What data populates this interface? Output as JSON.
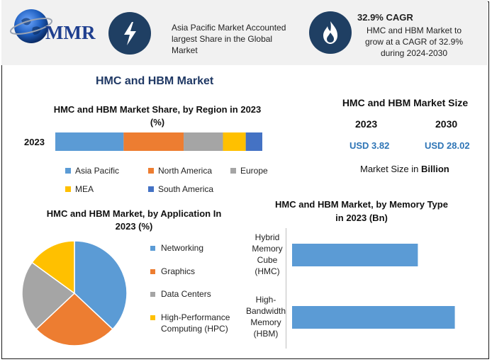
{
  "header": {
    "logo_text": "MMR",
    "info1_text": "Asia Pacific Market Accounted largest Share in the Global Market",
    "cagr_title": "32.9% CAGR",
    "cagr_text": "HMC and HBM Market to grow at a CAGR of 32.9% during 2024-2030",
    "icon1": "lightning-icon",
    "icon2": "flame-icon"
  },
  "main_title": "HMC and HBM Market",
  "colors": {
    "asia_pacific": "#5b9bd5",
    "north_america": "#ed7d31",
    "europe": "#a5a5a5",
    "mea": "#ffc000",
    "south_america": "#4472c4",
    "title_blue": "#1f3864",
    "value_blue": "#2e75b6"
  },
  "size_panel": {
    "title": "HMC and HBM Market Size",
    "year1": "2023",
    "year2": "2030",
    "value1": "USD 3.82",
    "value2": "USD 28.02",
    "unit_prefix": "Market Size in ",
    "unit_bold": "Billion"
  },
  "chart_data": [
    {
      "type": "bar",
      "orientation": "horizontal-stacked",
      "title": "HMC and HBM Market Share, by Region in 2023 (%)",
      "categories": [
        "2023"
      ],
      "series": [
        {
          "name": "Asia Pacific",
          "values": [
            33
          ]
        },
        {
          "name": "North America",
          "values": [
            29
          ]
        },
        {
          "name": "Europe",
          "values": [
            19
          ]
        },
        {
          "name": "MEA",
          "values": [
            11
          ]
        },
        {
          "name": "South America",
          "values": [
            8
          ]
        }
      ],
      "legend": "bottom"
    },
    {
      "type": "pie",
      "title": "HMC and HBM Market, by Application In 2023 (%)",
      "labels": [
        "Networking",
        "Graphics",
        "Data Centers",
        "High-Performance Computing (HPC)"
      ],
      "values": [
        37,
        26,
        22,
        15
      ],
      "legend": "right"
    },
    {
      "type": "bar",
      "orientation": "horizontal",
      "title": "HMC and HBM Market, by Memory Type in 2023 (Bn)",
      "categories": [
        "Hybrid Memory Cube (HMC)",
        "High-Bandwidth Memory (HBM)"
      ],
      "values": [
        1.7,
        2.2
      ]
    }
  ]
}
